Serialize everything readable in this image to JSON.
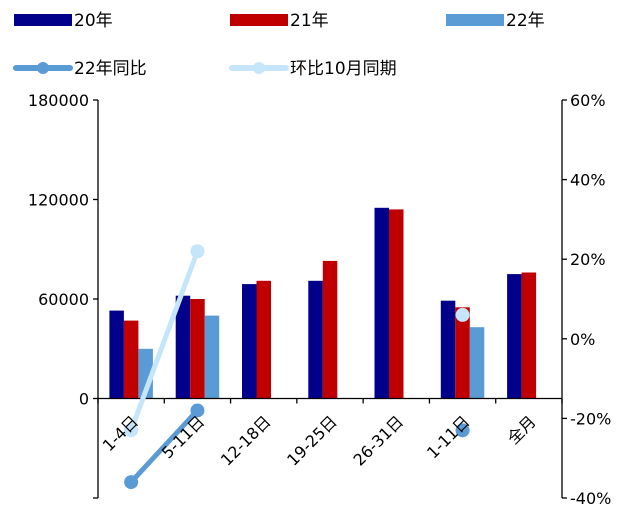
{
  "chart_data": {
    "type": "bar",
    "categories": [
      "1-4日",
      "5-11日",
      "12-18日",
      "19-25日",
      "26-31日",
      "1-11日",
      "全月"
    ],
    "series": [
      {
        "name": "20年",
        "kind": "bar",
        "axis": "left",
        "color": "#00008b",
        "values": [
          53000,
          62000,
          69000,
          71000,
          115000,
          59000,
          75000
        ]
      },
      {
        "name": "21年",
        "kind": "bar",
        "axis": "left",
        "color": "#c00000",
        "values": [
          47000,
          60000,
          71000,
          83000,
          114000,
          55000,
          76000
        ]
      },
      {
        "name": "22年",
        "kind": "bar",
        "axis": "left",
        "color": "#5b9bd5",
        "values": [
          30000,
          50000,
          null,
          null,
          null,
          43000,
          null
        ]
      },
      {
        "name": "22年同比",
        "kind": "line",
        "axis": "right",
        "color": "#5b9bd5",
        "values": [
          -0.36,
          -0.18,
          null,
          null,
          null,
          -0.23,
          null
        ]
      },
      {
        "name": "环比10月同期",
        "kind": "line",
        "axis": "right",
        "color": "#c5e5fb",
        "values": [
          -0.23,
          0.22,
          null,
          null,
          null,
          0.06,
          null
        ]
      }
    ],
    "left_axis": {
      "ylim": [
        -60000,
        180000
      ],
      "ticks": [
        0,
        60000,
        120000,
        180000
      ],
      "tick_labels": [
        "0",
        "60000",
        "120000",
        "180000"
      ]
    },
    "right_axis": {
      "ylim": [
        -0.4,
        0.6
      ],
      "ticks": [
        -0.4,
        -0.2,
        0,
        0.2,
        0.4,
        0.6
      ],
      "tick_labels": [
        "-40%",
        "-20%",
        "0%",
        "20%",
        "40%",
        "60%"
      ]
    },
    "legend_placement": "top",
    "grid": false
  }
}
